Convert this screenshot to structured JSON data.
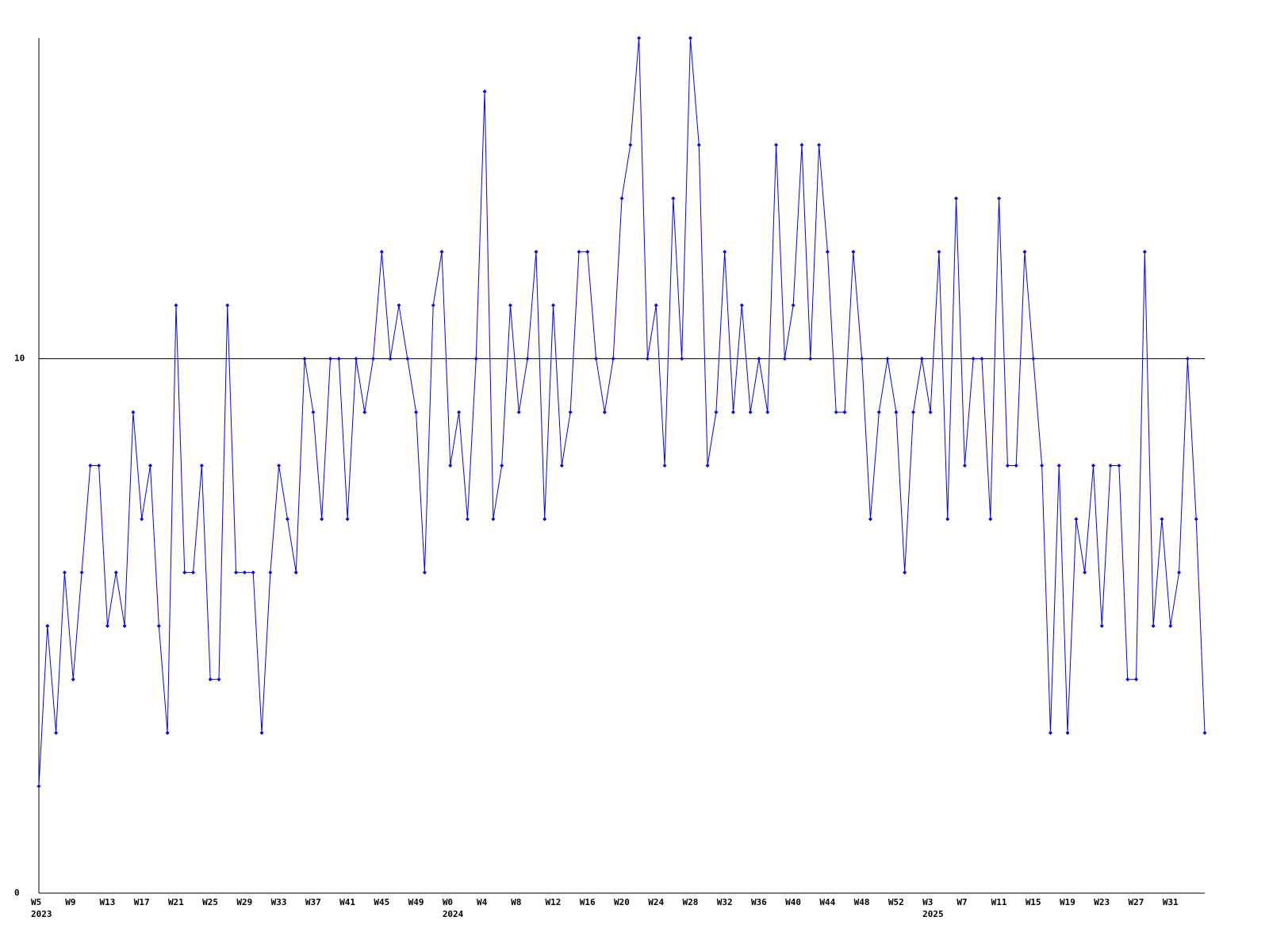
{
  "chart_data": {
    "type": "line",
    "categories": [
      "W5",
      null,
      null,
      null,
      "W9",
      null,
      null,
      null,
      "W13",
      null,
      null,
      null,
      "W17",
      null,
      null,
      null,
      "W21",
      null,
      null,
      null,
      "W25",
      null,
      null,
      null,
      "W29",
      null,
      null,
      null,
      "W33",
      null,
      null,
      null,
      "W37",
      null,
      null,
      null,
      "W41",
      null,
      null,
      null,
      "W45",
      null,
      null,
      null,
      "W49",
      null,
      null,
      null,
      "W0",
      null,
      null,
      null,
      "W4",
      null,
      null,
      null,
      "W8",
      null,
      null,
      null,
      "W12",
      null,
      null,
      null,
      "W16",
      null,
      null,
      null,
      "W20",
      null,
      null,
      null,
      "W24",
      null,
      null,
      null,
      "W28",
      null,
      null,
      null,
      "W32",
      null,
      null,
      null,
      "W36",
      null,
      null,
      null,
      "W40",
      null,
      null,
      null,
      "W44",
      null,
      null,
      null,
      "W48",
      null,
      null,
      null,
      "W52",
      null,
      null,
      null,
      "W3",
      null,
      null,
      null,
      "W7",
      null,
      null,
      null,
      "W11",
      null,
      null,
      null,
      "W15",
      null,
      null,
      null,
      "W19",
      null,
      null,
      null,
      "W23",
      null,
      null,
      null,
      "W27",
      null,
      null,
      null,
      "W31",
      null,
      null,
      null,
      null
    ],
    "years": [
      {
        "label": "2023",
        "category": "W5"
      },
      {
        "label": "2024",
        "category": "W0"
      },
      {
        "label": "2025",
        "category": "W3"
      }
    ],
    "series": [
      {
        "color": "#0000ff",
        "values": [
          2,
          5,
          3,
          6,
          4,
          6,
          8,
          8,
          5,
          6,
          5,
          9,
          7,
          8,
          5,
          3,
          11,
          6,
          6,
          8,
          4,
          4,
          11,
          6,
          6,
          6,
          3,
          6,
          8,
          7,
          6,
          10,
          9,
          7,
          10,
          10,
          7,
          10,
          9,
          10,
          12,
          10,
          11,
          10,
          9,
          6,
          11,
          12,
          8,
          9,
          7,
          10,
          15,
          7,
          8,
          11,
          9,
          10,
          12,
          7,
          11,
          8,
          9,
          12,
          12,
          10,
          9,
          10,
          13,
          14,
          16,
          10,
          11,
          8,
          13,
          10,
          16,
          14,
          8,
          9,
          12,
          9,
          11,
          9,
          10,
          9,
          14,
          10,
          11,
          14,
          10,
          14,
          12,
          9,
          9,
          12,
          10,
          7,
          9,
          10,
          9,
          6,
          9,
          10,
          9,
          12,
          7,
          13,
          8,
          10,
          10,
          7,
          13,
          8,
          8,
          12,
          10,
          8,
          3,
          8,
          3,
          7,
          6,
          8,
          5,
          8,
          8,
          4,
          4,
          12,
          5,
          7,
          5,
          6,
          10,
          7,
          3
        ]
      }
    ],
    "ylim": [
      0,
      16
    ],
    "yticks": [
      0,
      10
    ],
    "grid": true
  }
}
